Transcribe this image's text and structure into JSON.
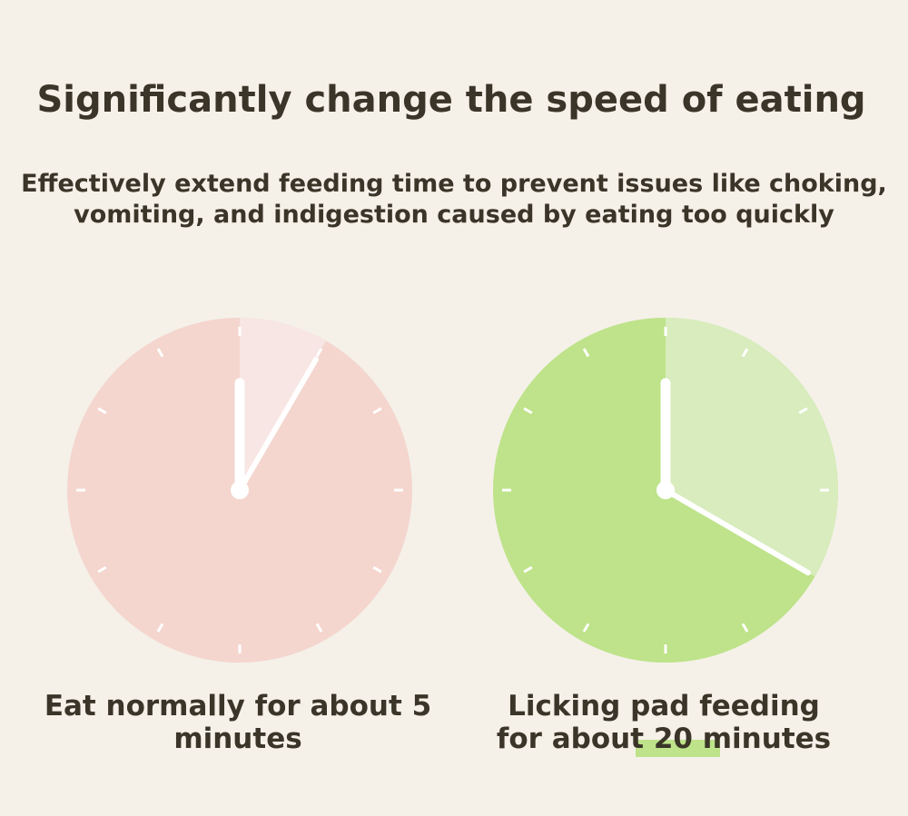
{
  "header": {
    "title": "Significantly change the speed of eating",
    "subtitle": [
      "Effectively extend feeding time to prevent issues like choking,",
      "vomiting, and indigestion caused by eating too quickly"
    ]
  },
  "captions": [
    {
      "lines": [
        "Eat normally for about 5",
        "minutes"
      ]
    },
    {
      "lines": [
        "Licking pad feeding",
        "for about 20 minutes"
      ]
    }
  ]
}
